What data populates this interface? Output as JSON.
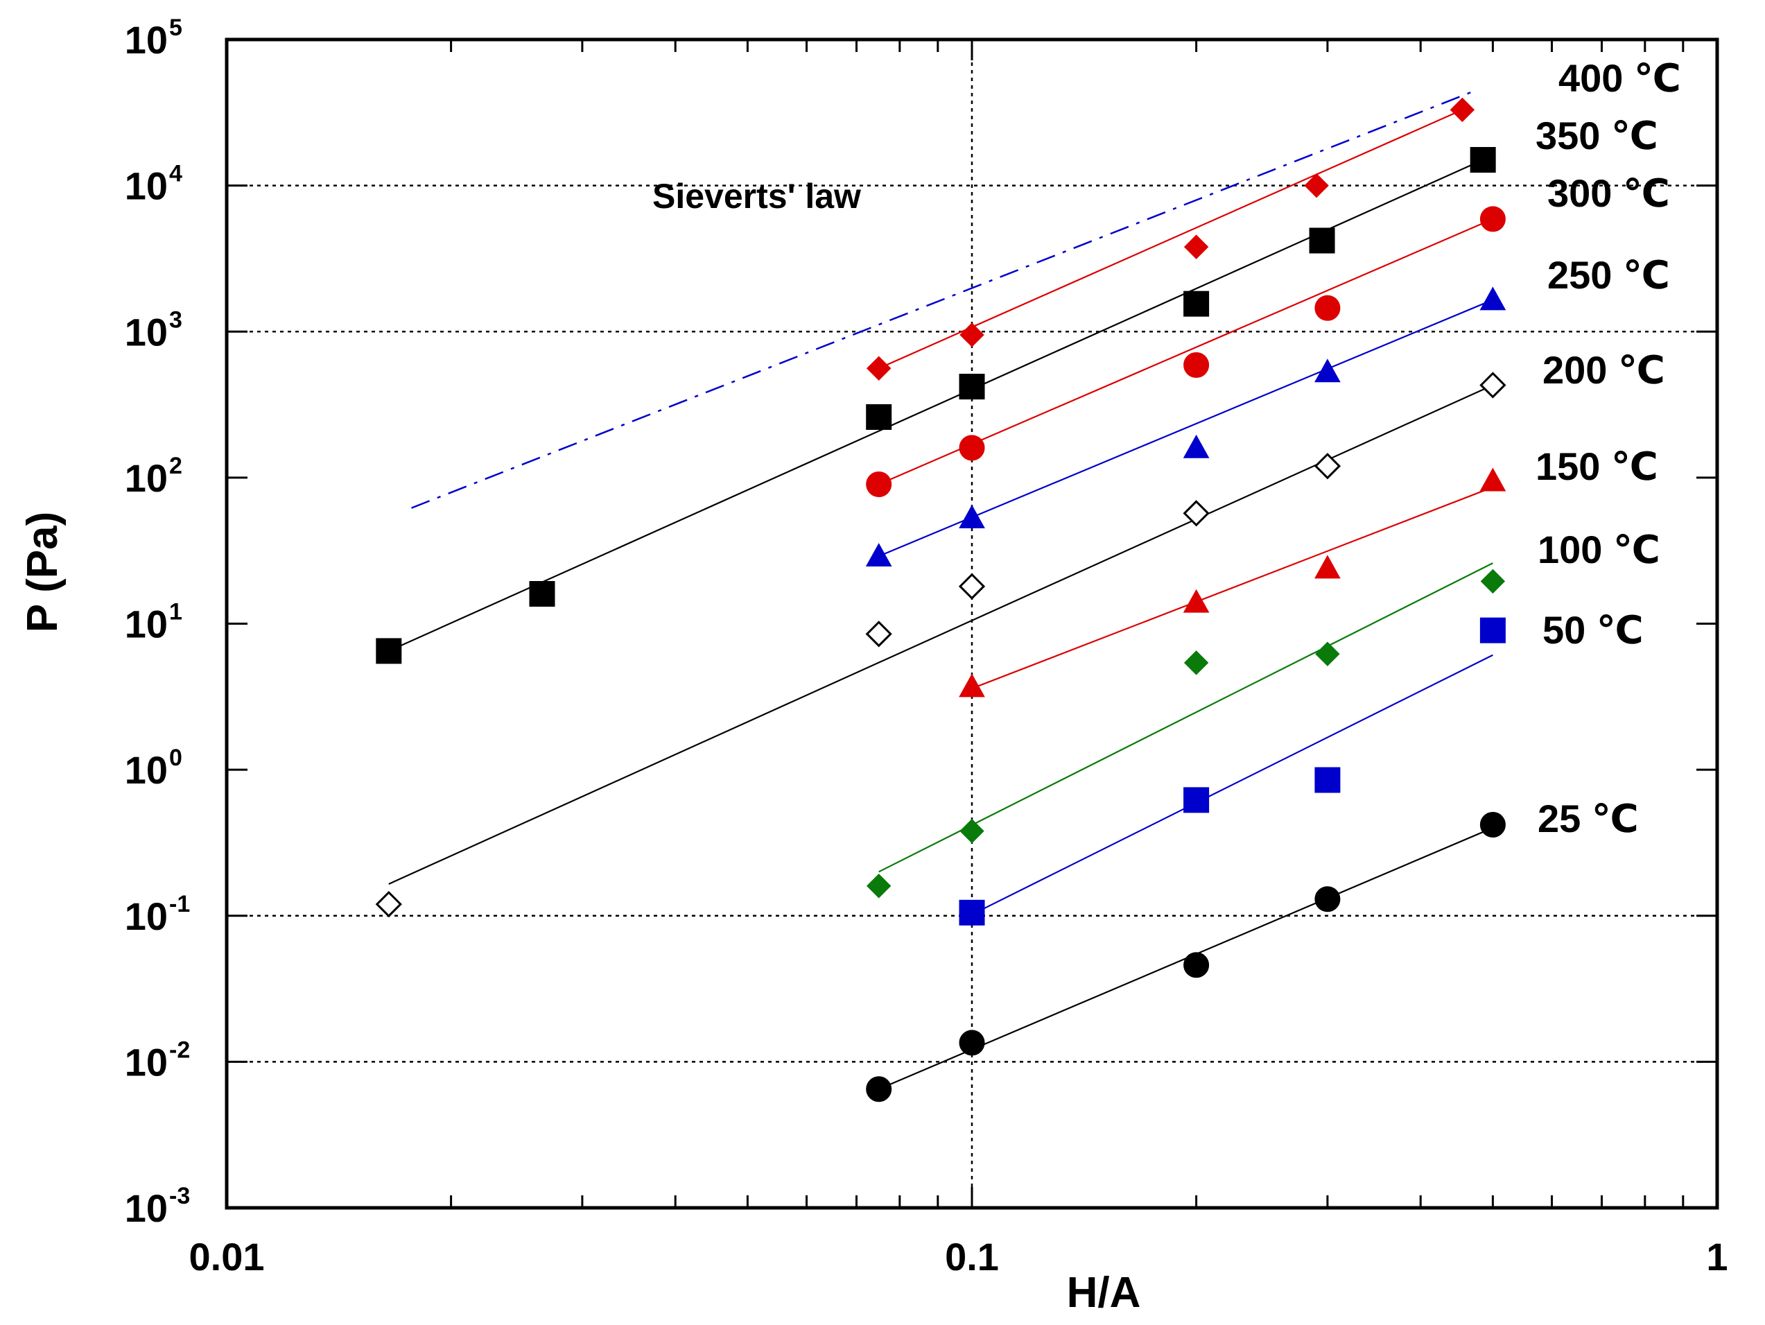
{
  "chart_data": {
    "type": "scatter",
    "title": "",
    "xlabel": "H/A",
    "ylabel": "P (Pa)",
    "xscale": "log",
    "yscale": "log",
    "xlim": [
      0.01,
      1
    ],
    "ylim": [
      0.001,
      100000
    ],
    "grid": "dotted at x=0.1 and y=10^-2, 10^-1, 10^3, 10^4",
    "x_tick_labels": [
      "0.01",
      "0.1",
      "1"
    ],
    "y_tick_labels": [
      {
        "base": "10",
        "exp": "-3",
        "value": 0.001
      },
      {
        "base": "10",
        "exp": "-2",
        "value": 0.01
      },
      {
        "base": "10",
        "exp": "-1",
        "value": 0.1
      },
      {
        "base": "10",
        "exp": "0",
        "value": 1
      },
      {
        "base": "10",
        "exp": "1",
        "value": 10
      },
      {
        "base": "10",
        "exp": "2",
        "value": 100
      },
      {
        "base": "10",
        "exp": "3",
        "value": 1000
      },
      {
        "base": "10",
        "exp": "4",
        "value": 10000
      },
      {
        "base": "10",
        "exp": "5",
        "value": 100000
      }
    ],
    "annotation": {
      "text": "Sieverts'  law",
      "x": 0.042,
      "y": 12000
    },
    "sievert_line": {
      "color": "#0000cc",
      "style": "dash-dot",
      "points": [
        [
          0.0177,
          62
        ],
        [
          0.47,
          44000
        ]
      ]
    },
    "series": [
      {
        "name": "400 ℃",
        "color": "#dd0000",
        "marker": "diamond",
        "filled": true,
        "x": [
          0.075,
          0.1,
          0.2,
          0.29,
          0.455
        ],
        "y": [
          560,
          950,
          3800,
          10000,
          33000
        ],
        "fit": [
          [
            0.075,
            560
          ],
          [
            0.455,
            33000
          ]
        ]
      },
      {
        "name": "350 ℃",
        "color": "#000000",
        "marker": "square",
        "filled": true,
        "x": [
          0.0165,
          0.0265,
          0.075,
          0.1,
          0.2,
          0.295,
          0.485
        ],
        "y": [
          6.5,
          16,
          260,
          420,
          1550,
          4200,
          15000
        ],
        "fit": [
          [
            0.0165,
            6.5
          ],
          [
            0.485,
            15000
          ]
        ]
      },
      {
        "name": "300 ℃",
        "color": "#dd0000",
        "marker": "circle",
        "filled": true,
        "x": [
          0.075,
          0.1,
          0.2,
          0.3,
          0.5
        ],
        "y": [
          90,
          160,
          590,
          1450,
          5900
        ],
        "fit": [
          [
            0.075,
            90
          ],
          [
            0.5,
            5900
          ]
        ]
      },
      {
        "name": "250 ℃",
        "color": "#0000cc",
        "marker": "triangle",
        "filled": true,
        "x": [
          0.075,
          0.1,
          0.2,
          0.3,
          0.5
        ],
        "y": [
          29,
          53,
          160,
          530,
          1650
        ],
        "fit": [
          [
            0.075,
            29
          ],
          [
            0.5,
            1650
          ]
        ]
      },
      {
        "name": "200 ℃",
        "color": "#000000",
        "marker": "diamond",
        "filled": false,
        "x": [
          0.0165,
          0.075,
          0.1,
          0.2,
          0.3,
          0.5
        ],
        "y": [
          0.12,
          8.5,
          18,
          57,
          120,
          430
        ],
        "fit": [
          [
            0.0165,
            0.165
          ],
          [
            0.5,
            430
          ]
        ]
      },
      {
        "name": "150 ℃",
        "color": "#dd0000",
        "marker": "triangle",
        "filled": true,
        "x": [
          0.1,
          0.2,
          0.3,
          0.5
        ],
        "y": [
          3.7,
          14,
          24,
          95
        ],
        "fit": [
          [
            0.1,
            3.6
          ],
          [
            0.5,
            86
          ]
        ]
      },
      {
        "name": "100 ℃",
        "color": "#0a7a0a",
        "marker": "diamond",
        "filled": true,
        "x": [
          0.075,
          0.1,
          0.2,
          0.3,
          0.5
        ],
        "y": [
          0.16,
          0.38,
          5.4,
          6.2,
          19.5
        ],
        "fit": [
          [
            0.075,
            0.2
          ],
          [
            0.5,
            26
          ]
        ]
      },
      {
        "name": "50 ℃",
        "color": "#0000cc",
        "marker": "square",
        "filled": true,
        "x": [
          0.1,
          0.2,
          0.3,
          0.5
        ],
        "y": [
          0.105,
          0.62,
          0.85,
          9
        ],
        "fit": [
          [
            0.1,
            0.102
          ],
          [
            0.5,
            6.1
          ]
        ]
      },
      {
        "name": "25 ℃",
        "color": "#000000",
        "marker": "circle",
        "filled": true,
        "x": [
          0.075,
          0.1,
          0.2,
          0.3,
          0.5
        ],
        "y": [
          0.0065,
          0.0135,
          0.046,
          0.13,
          0.42
        ],
        "fit": [
          [
            0.075,
            0.0065
          ],
          [
            0.5,
            0.4
          ]
        ]
      }
    ]
  }
}
